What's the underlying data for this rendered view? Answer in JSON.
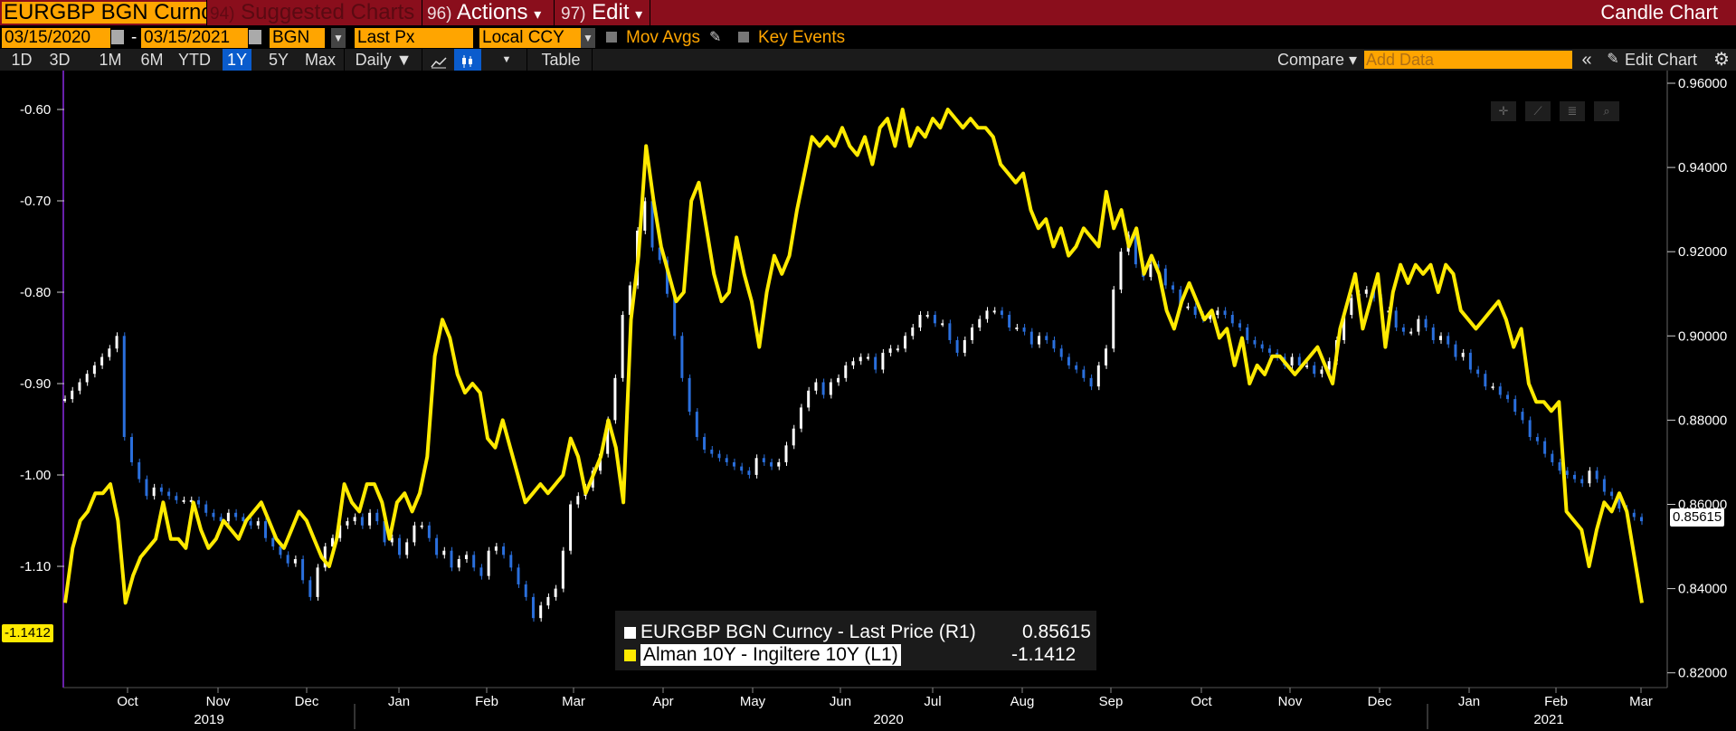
{
  "header": {
    "security": "EURGBP BGN Curncy",
    "suggested": {
      "num": "94)",
      "label": "Suggested Charts"
    },
    "actions": {
      "num": "96)",
      "label": "Actions",
      "caret": "▾"
    },
    "edit": {
      "num": "97)",
      "label": "Edit",
      "caret": "▾"
    },
    "title": "Candle Chart"
  },
  "params": {
    "start_date": "03/15/2020",
    "end_date": "03/15/2021",
    "dash": "-",
    "source": "BGN",
    "field": "Last Px",
    "currency": "Local CCY",
    "mov_avgs": "Mov Avgs",
    "key_events": "Key Events",
    "calendar_icon": "calendar-icon",
    "pencil_icon": "pencil-icon"
  },
  "toolbar": {
    "ranges": [
      "1D",
      "3D",
      "1M",
      "6M",
      "YTD",
      "1Y",
      "5Y",
      "Max"
    ],
    "active_range": "1Y",
    "frequency": "Daily ▼",
    "table": "Table",
    "compare": "Compare ▾",
    "add_data_placeholder": "Add Data",
    "collapse": "«",
    "edit_chart": "Edit Chart",
    "gear_icon": "gear-icon",
    "line_icon": "line-chart-icon",
    "candle_icon": "candle-icon"
  },
  "chart_data": {
    "type": "line",
    "x_month_labels": [
      "Oct",
      "Nov",
      "Dec",
      "Jan",
      "Feb",
      "Mar",
      "Apr",
      "May",
      "Jun",
      "Jul",
      "Aug",
      "Sep",
      "Oct",
      "Nov",
      "Dec",
      "Jan",
      "Feb",
      "Mar"
    ],
    "x_year_labels": [
      "2019",
      "2020",
      "2021"
    ],
    "left_axis": {
      "ticks": [
        "-0.60",
        "-0.70",
        "-0.80",
        "-0.90",
        "-1.00",
        "-1.10"
      ],
      "range": [
        -1.2,
        -0.54
      ]
    },
    "right_axis": {
      "ticks": [
        "0.96000",
        "0.94000",
        "0.92000",
        "0.90000",
        "0.88000",
        "0.86000",
        "0.84000",
        "0.82000"
      ],
      "range": [
        0.82,
        0.96
      ]
    },
    "series": [
      {
        "name": "EURGBP BGN Curncy - Last Price (R1)",
        "axis": "right",
        "value": "0.85615",
        "color": "#ffffff",
        "down_color": "#2a6fdc",
        "values": [
          0.885,
          0.887,
          0.889,
          0.891,
          0.893,
          0.895,
          0.897,
          0.9,
          0.876,
          0.87,
          0.866,
          0.862,
          0.864,
          0.863,
          0.862,
          0.861,
          0.861,
          0.861,
          0.86,
          0.858,
          0.857,
          0.856,
          0.858,
          0.857,
          0.856,
          0.855,
          0.856,
          0.852,
          0.85,
          0.848,
          0.846,
          0.847,
          0.842,
          0.838,
          0.845,
          0.85,
          0.852,
          0.855,
          0.856,
          0.857,
          0.855,
          0.858,
          0.856,
          0.851,
          0.852,
          0.848,
          0.851,
          0.855,
          0.855,
          0.852,
          0.848,
          0.849,
          0.845,
          0.847,
          0.848,
          0.845,
          0.843,
          0.849,
          0.85,
          0.848,
          0.845,
          0.841,
          0.838,
          0.833,
          0.836,
          0.838,
          0.84,
          0.849,
          0.86,
          0.862,
          0.864,
          0.868,
          0.872,
          0.88,
          0.89,
          0.905,
          0.912,
          0.925,
          0.932,
          0.921,
          0.918,
          0.91,
          0.9,
          0.89,
          0.882,
          0.876,
          0.873,
          0.872,
          0.871,
          0.87,
          0.869,
          0.868,
          0.867,
          0.871,
          0.87,
          0.869,
          0.87,
          0.874,
          0.878,
          0.883,
          0.887,
          0.889,
          0.886,
          0.889,
          0.89,
          0.893,
          0.894,
          0.895,
          0.895,
          0.892,
          0.896,
          0.897,
          0.897,
          0.9,
          0.902,
          0.905,
          0.905,
          0.903,
          0.903,
          0.899,
          0.896,
          0.899,
          0.902,
          0.904,
          0.906,
          0.906,
          0.905,
          0.902,
          0.902,
          0.901,
          0.898,
          0.9,
          0.899,
          0.897,
          0.895,
          0.893,
          0.892,
          0.89,
          0.888,
          0.893,
          0.897,
          0.911,
          0.92,
          0.924,
          0.917,
          0.914,
          0.917,
          0.916,
          0.912,
          0.911,
          0.907,
          0.907,
          0.905,
          0.904,
          0.905,
          0.906,
          0.905,
          0.903,
          0.902,
          0.899,
          0.898,
          0.897,
          0.896,
          0.895,
          0.893,
          0.895,
          0.893,
          0.893,
          0.891,
          0.892,
          0.894,
          0.899,
          0.905,
          0.909,
          0.91,
          0.911,
          0.909,
          0.906,
          0.906,
          0.902,
          0.901,
          0.901,
          0.904,
          0.902,
          0.899,
          0.9,
          0.898,
          0.895,
          0.896,
          0.892,
          0.891,
          0.888,
          0.888,
          0.886,
          0.885,
          0.882,
          0.88,
          0.876,
          0.875,
          0.872,
          0.87,
          0.868,
          0.867,
          0.866,
          0.865,
          0.868,
          0.866,
          0.863,
          0.862,
          0.859,
          0.858,
          0.857,
          0.856
        ]
      },
      {
        "name": "Alman 10Y - Ingiltere 10Y (L1)",
        "axis": "left",
        "value": "-1.1412",
        "color": "#ffea00",
        "values": [
          -1.14,
          -1.08,
          -1.05,
          -1.04,
          -1.02,
          -1.02,
          -1.01,
          -1.05,
          -1.14,
          -1.11,
          -1.09,
          -1.08,
          -1.07,
          -1.03,
          -1.07,
          -1.07,
          -1.08,
          -1.03,
          -1.06,
          -1.08,
          -1.07,
          -1.05,
          -1.06,
          -1.07,
          -1.05,
          -1.04,
          -1.03,
          -1.05,
          -1.07,
          -1.08,
          -1.06,
          -1.04,
          -1.05,
          -1.07,
          -1.09,
          -1.1,
          -1.07,
          -1.01,
          -1.03,
          -1.04,
          -1.01,
          -1.01,
          -1.03,
          -1.07,
          -1.03,
          -1.02,
          -1.04,
          -1.02,
          -0.98,
          -0.87,
          -0.83,
          -0.85,
          -0.89,
          -0.91,
          -0.9,
          -0.91,
          -0.96,
          -0.97,
          -0.94,
          -0.97,
          -1.0,
          -1.03,
          -1.02,
          -1.01,
          -1.02,
          -1.01,
          -1.0,
          -0.96,
          -0.98,
          -1.02,
          -1.0,
          -0.98,
          -0.94,
          -0.97,
          -1.03,
          -0.83,
          -0.76,
          -0.64,
          -0.7,
          -0.75,
          -0.78,
          -0.81,
          -0.8,
          -0.7,
          -0.68,
          -0.73,
          -0.78,
          -0.81,
          -0.8,
          -0.74,
          -0.78,
          -0.81,
          -0.86,
          -0.8,
          -0.76,
          -0.78,
          -0.76,
          -0.71,
          -0.67,
          -0.63,
          -0.64,
          -0.63,
          -0.64,
          -0.62,
          -0.64,
          -0.65,
          -0.63,
          -0.66,
          -0.62,
          -0.61,
          -0.64,
          -0.6,
          -0.64,
          -0.62,
          -0.63,
          -0.61,
          -0.62,
          -0.6,
          -0.61,
          -0.62,
          -0.61,
          -0.62,
          -0.62,
          -0.63,
          -0.66,
          -0.67,
          -0.68,
          -0.67,
          -0.71,
          -0.73,
          -0.72,
          -0.75,
          -0.73,
          -0.76,
          -0.75,
          -0.73,
          -0.74,
          -0.75,
          -0.69,
          -0.73,
          -0.71,
          -0.75,
          -0.73,
          -0.78,
          -0.76,
          -0.78,
          -0.82,
          -0.84,
          -0.81,
          -0.79,
          -0.81,
          -0.83,
          -0.82,
          -0.85,
          -0.84,
          -0.88,
          -0.85,
          -0.9,
          -0.88,
          -0.89,
          -0.87,
          -0.87,
          -0.88,
          -0.89,
          -0.88,
          -0.87,
          -0.86,
          -0.88,
          -0.9,
          -0.84,
          -0.81,
          -0.78,
          -0.84,
          -0.81,
          -0.78,
          -0.86,
          -0.8,
          -0.77,
          -0.79,
          -0.77,
          -0.78,
          -0.77,
          -0.8,
          -0.77,
          -0.78,
          -0.82,
          -0.83,
          -0.84,
          -0.83,
          -0.82,
          -0.81,
          -0.83,
          -0.86,
          -0.84,
          -0.9,
          -0.92,
          -0.92,
          -0.93,
          -0.92,
          -1.04,
          -1.05,
          -1.06,
          -1.1,
          -1.06,
          -1.03,
          -1.04,
          -1.02,
          -1.04,
          -1.09,
          -1.14
        ]
      }
    ],
    "last_labels": {
      "left": "-1.1412",
      "right": "0.85615"
    }
  }
}
